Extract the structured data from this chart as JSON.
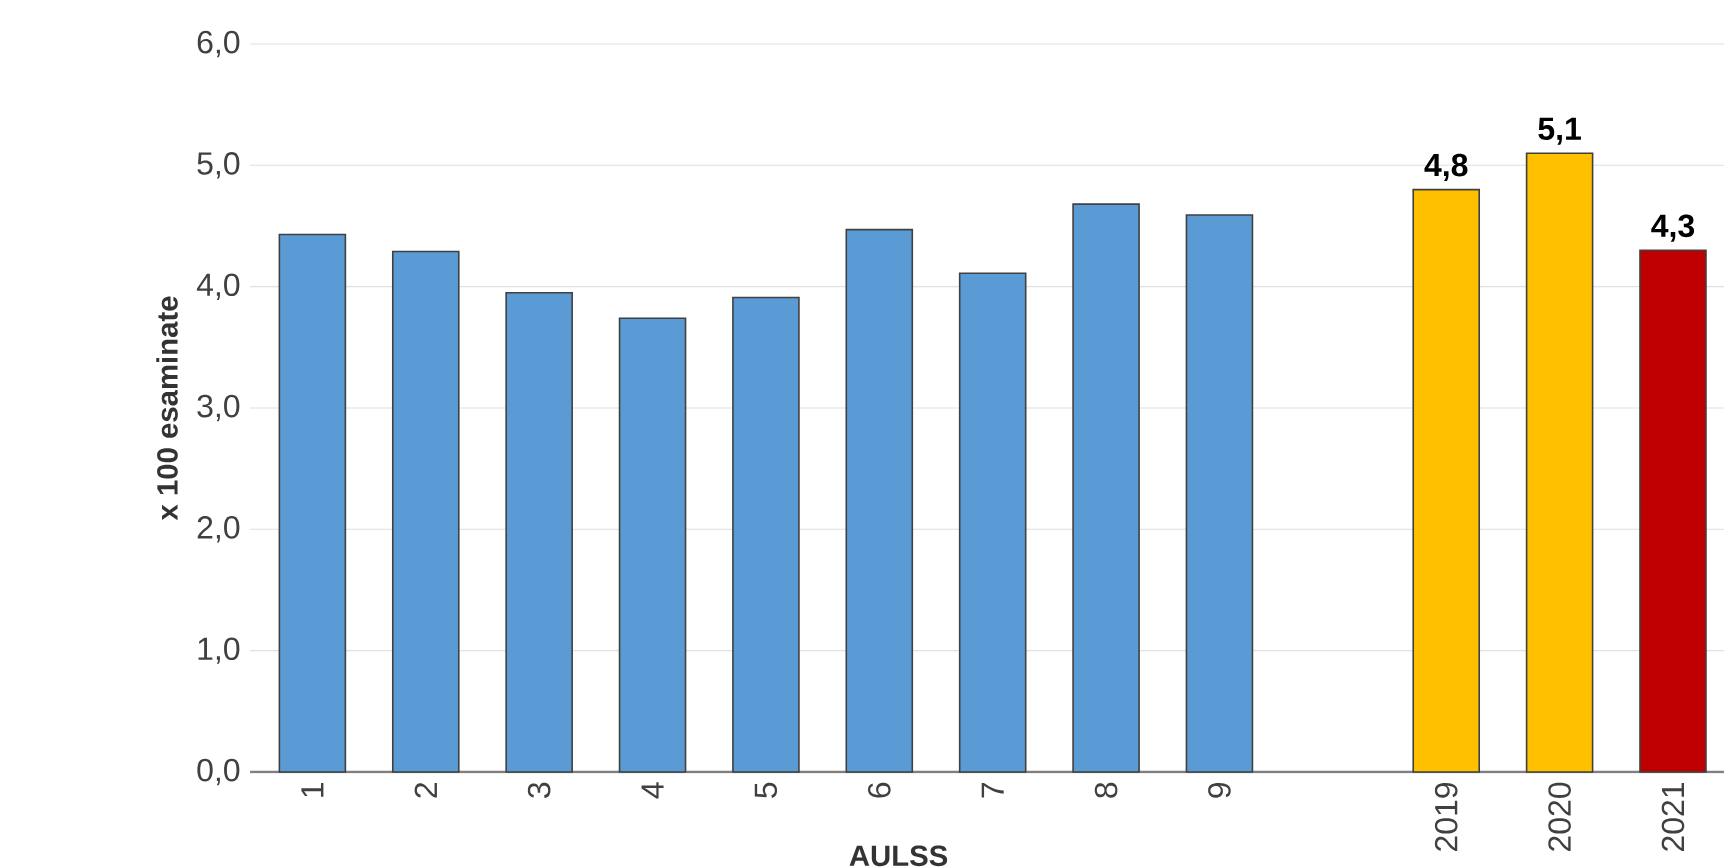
{
  "chart_data": {
    "type": "bar",
    "xlabel": "AULSS",
    "ylabel": "x 100 esaminate",
    "categories": [
      "1",
      "2",
      "3",
      "4",
      "5",
      "6",
      "7",
      "8",
      "9",
      null,
      "2019",
      "2020",
      "2021"
    ],
    "values": [
      4.43,
      4.29,
      3.95,
      3.74,
      3.91,
      4.47,
      4.11,
      4.68,
      4.59,
      null,
      4.8,
      5.1,
      4.3
    ],
    "colors": [
      "#5b9bd5",
      "#5b9bd5",
      "#5b9bd5",
      "#5b9bd5",
      "#5b9bd5",
      "#5b9bd5",
      "#5b9bd5",
      "#5b9bd5",
      "#5b9bd5",
      "#5b9bd5",
      "#ffc000",
      "#ffc000",
      "#c00000"
    ],
    "value_labels": [
      null,
      null,
      null,
      null,
      null,
      null,
      null,
      null,
      null,
      null,
      "4,8",
      "5,1",
      "4,3"
    ],
    "ylim": [
      0,
      6
    ],
    "yticks": [
      {
        "value": 0,
        "label": "0,0"
      },
      {
        "value": 1,
        "label": "1,0"
      },
      {
        "value": 2,
        "label": "2,0"
      },
      {
        "value": 3,
        "label": "3,0"
      },
      {
        "value": 4,
        "label": "4,0"
      },
      {
        "value": 5,
        "label": "5,0"
      },
      {
        "value": 6,
        "label": "6,0"
      }
    ],
    "grid": "y"
  }
}
